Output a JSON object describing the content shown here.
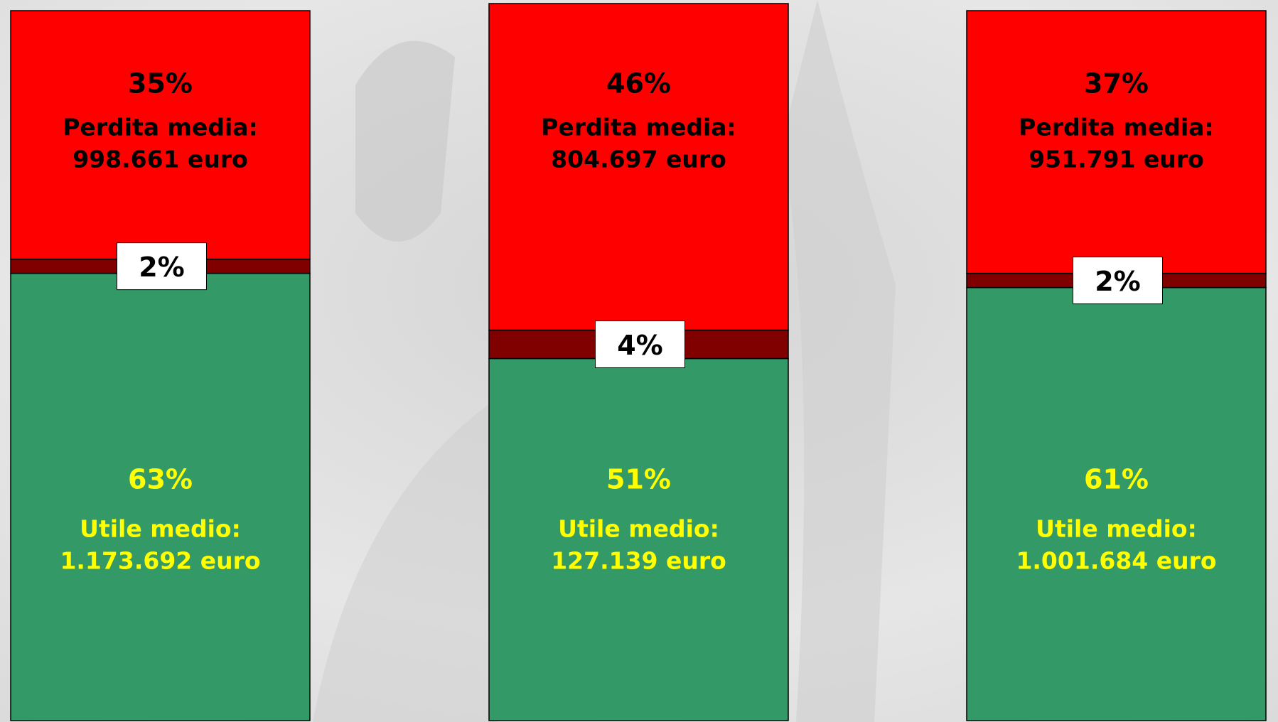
{
  "chart_data": {
    "type": "stacked_bar",
    "categories": [
      null,
      null,
      null
    ],
    "ylim": [
      0,
      100
    ],
    "series": [
      {
        "color": "#339966",
        "values": [
          63,
          51,
          61
        ],
        "value_labels": [
          "63%",
          "51%",
          "61%"
        ],
        "label": "Utile medio:",
        "amounts": [
          "1.173.692 euro",
          "127.139 euro",
          "1.001.684 euro"
        ],
        "text_color": "#ffff00"
      },
      {
        "color": "#800000",
        "values": [
          2,
          4,
          2
        ],
        "value_labels": [
          "2%",
          "4%",
          "2%"
        ],
        "text_color": "#000000"
      },
      {
        "color": "#ff0000",
        "values": [
          35,
          46,
          37
        ],
        "value_labels": [
          "35%",
          "46%",
          "37%"
        ],
        "label": "Perdita media:",
        "amounts": [
          "998.661 euro",
          "804.697 euro",
          "951.791 euro"
        ],
        "text_color": "#000000"
      }
    ]
  }
}
